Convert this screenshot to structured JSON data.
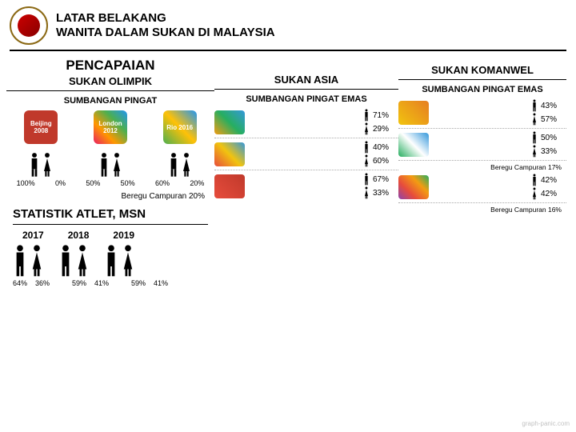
{
  "header": {
    "title_line1": "LATAR BELAKANG",
    "title_line2": "WANITA DALAM SUKAN DI MALAYSIA"
  },
  "olympic": {
    "title": "PENCAPAIAN",
    "subtitle": "SUKAN OLIMPIK",
    "sub2": "SUMBANGAN PINGAT",
    "logos": [
      {
        "label": "Beijing 2008",
        "bg": "#c0392b"
      },
      {
        "label": "London 2012",
        "bg": "linear-gradient(45deg,#e91e63,#ff9800,#4caf50,#2196f3)"
      },
      {
        "label": "Rio 2016",
        "bg": "linear-gradient(45deg,#4caf50,#ffc107,#2196f3)"
      }
    ],
    "percents": [
      "100%",
      "0%",
      "50%",
      "50%",
      "60%",
      "20%"
    ],
    "beregu": "Beregu Campuran 20%",
    "person_color_male": "#000000",
    "person_color_female": "#000000"
  },
  "stats": {
    "title": "STATISTIK ATLET, MSN",
    "years": [
      "2017",
      "2018",
      "2019"
    ],
    "rows": [
      {
        "m": "64%",
        "f": "36%"
      },
      {
        "m": "59%",
        "f": "41%"
      },
      {
        "m": "59%",
        "f": "41%"
      }
    ]
  },
  "asia": {
    "title": "SUKAN ASIA",
    "sub": "SUMBANGAN PINGAT EMAS",
    "events": [
      {
        "bg": "linear-gradient(45deg,#f39c12,#27ae60,#3498db)",
        "rows": [
          {
            "p": "71%"
          },
          {
            "p": "29%"
          }
        ]
      },
      {
        "bg": "linear-gradient(45deg,#e74c3c,#f1c40f,#3498db)",
        "rows": [
          {
            "p": "40%"
          },
          {
            "p": "60%"
          }
        ]
      },
      {
        "bg": "linear-gradient(45deg,#e74c3c,#c0392b)",
        "rows": [
          {
            "p": "67%"
          },
          {
            "p": "33%"
          }
        ]
      }
    ]
  },
  "komanwel": {
    "title": "SUKAN KOMANWEL",
    "sub": "SUMBANGAN PINGAT EMAS",
    "events": [
      {
        "bg": "linear-gradient(45deg,#f1c40f,#e67e22)",
        "rows": [
          {
            "p": "43%"
          },
          {
            "p": "57%"
          }
        ]
      },
      {
        "bg": "linear-gradient(45deg,#27ae60,#fff,#3498db)",
        "rows": [
          {
            "p": "50%"
          },
          {
            "p": "33%"
          }
        ],
        "beregu": "Beregu Campuran 17%"
      },
      {
        "bg": "linear-gradient(45deg,#8e44ad,#e74c3c,#f39c12,#27ae60)",
        "rows": [
          {
            "p": "42%"
          },
          {
            "p": "42%"
          }
        ],
        "beregu": "Beregu Campuran 16%"
      }
    ]
  },
  "watermark": "graph-panic.com"
}
